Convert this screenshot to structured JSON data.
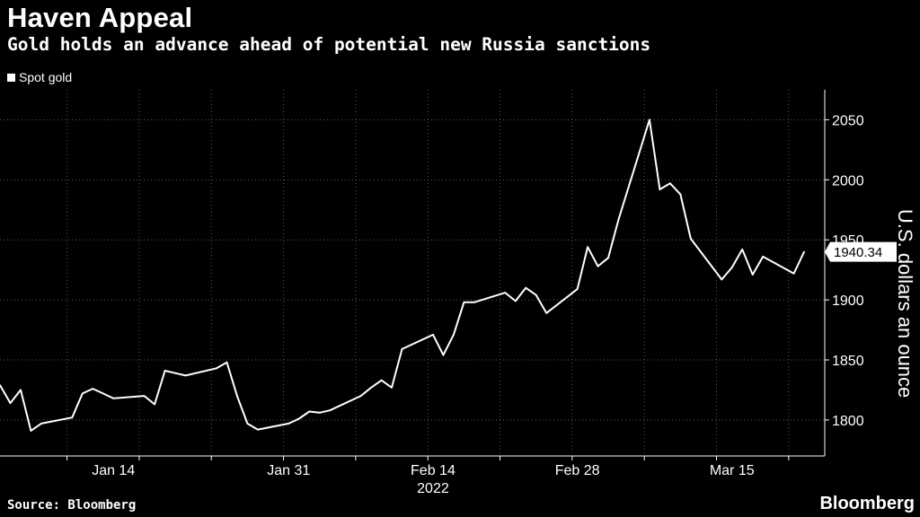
{
  "header": {
    "title": "Haven Appeal",
    "subtitle": "Gold holds an advance ahead of potential new Russia sanctions"
  },
  "legend": {
    "label": "Spot gold"
  },
  "footer": {
    "source": "Source: Bloomberg",
    "brand": "Bloomberg"
  },
  "chart_data": {
    "type": "line",
    "title": "Haven Appeal",
    "subtitle": "Gold holds an advance ahead of potential new Russia sanctions",
    "xlabel": "",
    "ylabel": "U.S. dollars an ounce",
    "x_ticks": [
      "Jan 14",
      "Jan 31",
      "Feb 14",
      "Feb 28",
      "Mar 15"
    ],
    "x_year_label": "2022",
    "y_ticks": [
      1800,
      1850,
      1900,
      1950,
      2000,
      2050
    ],
    "ylim": [
      1770,
      2075
    ],
    "last_value_label": "1940.34",
    "grid": true,
    "legend_position": "top-left",
    "series": [
      {
        "name": "Spot gold",
        "color": "#ffffff",
        "x": [
          "2022-01-03",
          "2022-01-04",
          "2022-01-05",
          "2022-01-06",
          "2022-01-07",
          "2022-01-10",
          "2022-01-11",
          "2022-01-12",
          "2022-01-13",
          "2022-01-14",
          "2022-01-17",
          "2022-01-18",
          "2022-01-19",
          "2022-01-20",
          "2022-01-21",
          "2022-01-24",
          "2022-01-25",
          "2022-01-26",
          "2022-01-27",
          "2022-01-28",
          "2022-01-31",
          "2022-02-01",
          "2022-02-02",
          "2022-02-03",
          "2022-02-04",
          "2022-02-07",
          "2022-02-08",
          "2022-02-09",
          "2022-02-10",
          "2022-02-11",
          "2022-02-14",
          "2022-02-15",
          "2022-02-16",
          "2022-02-17",
          "2022-02-18",
          "2022-02-21",
          "2022-02-22",
          "2022-02-23",
          "2022-02-24",
          "2022-02-25",
          "2022-02-28",
          "2022-03-01",
          "2022-03-02",
          "2022-03-03",
          "2022-03-04",
          "2022-03-07",
          "2022-03-08",
          "2022-03-09",
          "2022-03-10",
          "2022-03-11",
          "2022-03-14",
          "2022-03-15",
          "2022-03-16",
          "2022-03-17",
          "2022-03-18",
          "2022-03-21",
          "2022-03-22"
        ],
        "values": [
          1829,
          1814,
          1825,
          1791,
          1797,
          1802,
          1822,
          1826,
          1822,
          1818,
          1820,
          1813,
          1841,
          1839,
          1837,
          1843,
          1848,
          1820,
          1797,
          1792,
          1797,
          1801,
          1807,
          1806,
          1808,
          1820,
          1827,
          1833,
          1827,
          1859,
          1871,
          1854,
          1871,
          1898,
          1898,
          1906,
          1899,
          1910,
          1904,
          1889,
          1909,
          1944,
          1928,
          1935,
          1967,
          2050,
          1992,
          1997,
          1988,
          1951,
          1917,
          1927,
          1942,
          1921,
          1936,
          1922,
          1940
        ]
      }
    ]
  }
}
